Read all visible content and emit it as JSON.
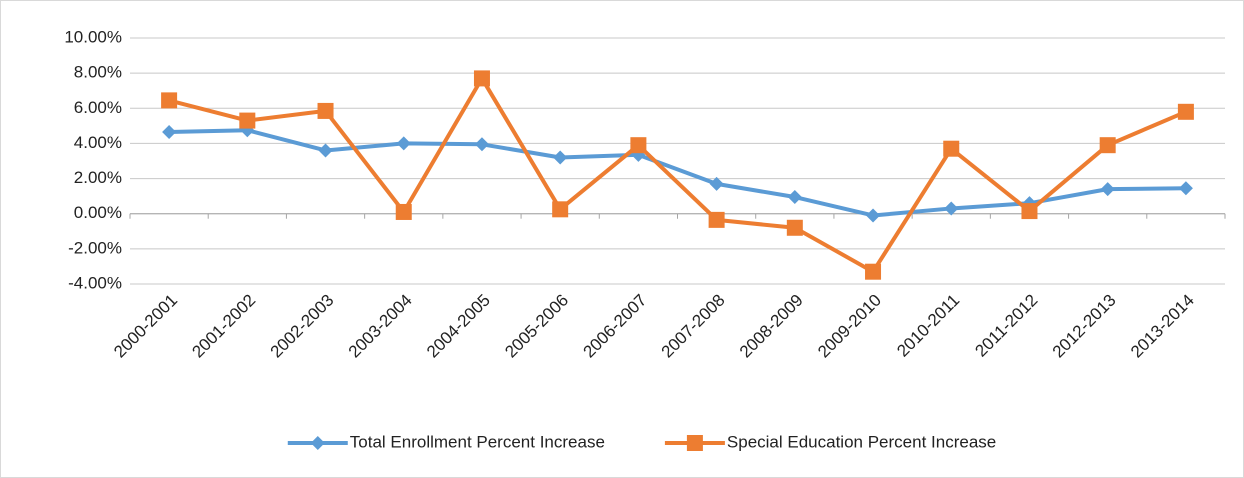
{
  "chart_data": {
    "type": "line",
    "categories": [
      "2000-2001",
      "2001-2002",
      "2002-2003",
      "2003-2004",
      "2004-2005",
      "2005-2006",
      "2006-2007",
      "2007-2008",
      "2008-2009",
      "2009-2010",
      "2010-2011",
      "2011-2012",
      "2012-2013",
      "2013-2014"
    ],
    "series": [
      {
        "name": "Total Enrollment Percent Increase",
        "color": "#5b9bd5",
        "marker": "diamond",
        "values": [
          4.65,
          4.75,
          3.6,
          4.0,
          3.95,
          3.2,
          3.35,
          1.7,
          0.95,
          -0.1,
          0.3,
          0.6,
          1.4,
          1.45
        ]
      },
      {
        "name": "Special Education Percent Increase",
        "color": "#ed7d31",
        "marker": "square",
        "values": [
          6.45,
          5.3,
          5.85,
          0.1,
          7.7,
          0.25,
          3.9,
          -0.35,
          -0.8,
          -3.3,
          3.7,
          0.15,
          3.9,
          5.8
        ]
      }
    ],
    "ylim": [
      -4,
      10
    ],
    "yticks": [
      {
        "value": -4,
        "label": "-4.00%"
      },
      {
        "value": -2,
        "label": "-2.00%"
      },
      {
        "value": 0,
        "label": "0.00%"
      },
      {
        "value": 2,
        "label": "2.00%"
      },
      {
        "value": 4,
        "label": "4.00%"
      },
      {
        "value": 6,
        "label": "6.00%"
      },
      {
        "value": 8,
        "label": "8.00%"
      },
      {
        "value": 10,
        "label": "10.00%"
      }
    ],
    "grid": true,
    "legend": "bottom"
  }
}
